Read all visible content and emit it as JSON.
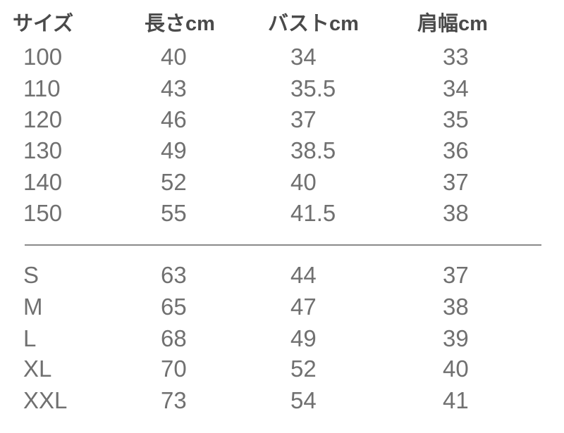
{
  "headers": [
    "サイズ",
    "長さcm",
    "バストcm",
    "肩幅cm"
  ],
  "kids_rows": [
    [
      "100",
      "40",
      "34",
      "33"
    ],
    [
      "110",
      "43",
      "35.5",
      "34"
    ],
    [
      "120",
      "46",
      "37",
      "35"
    ],
    [
      "130",
      "49",
      "38.5",
      "36"
    ],
    [
      "140",
      "52",
      "40",
      "37"
    ],
    [
      "150",
      "55",
      "41.5",
      "38"
    ]
  ],
  "adult_rows": [
    [
      "S",
      "63",
      "44",
      "37"
    ],
    [
      "M",
      "65",
      "47",
      "38"
    ],
    [
      "L",
      "68",
      "49",
      "39"
    ],
    [
      "XL",
      "70",
      "52",
      "40"
    ],
    [
      "XXL",
      "73",
      "54",
      "41"
    ]
  ]
}
